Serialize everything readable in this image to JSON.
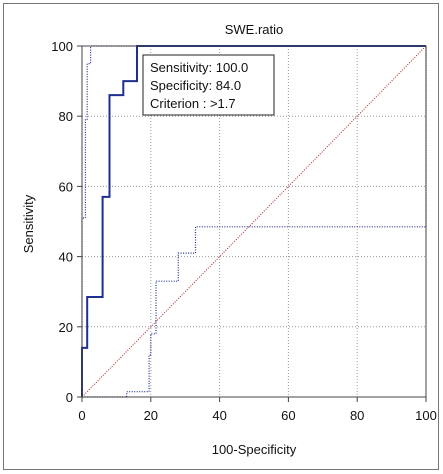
{
  "chart_data": {
    "type": "line",
    "title": "SWE.ratio",
    "xlabel": "100-Specificity",
    "ylabel": "Sensitivity",
    "xlim": [
      0,
      100
    ],
    "ylim": [
      0,
      100
    ],
    "xticks": [
      0,
      20,
      40,
      60,
      80,
      100
    ],
    "yticks": [
      0,
      20,
      40,
      60,
      80,
      100
    ],
    "grid": true,
    "colors": {
      "roc": "#1f2f8f",
      "ci": "#1f2f8f",
      "reference": "#b22222",
      "grid": "#9a9a9a"
    },
    "series": [
      {
        "style": "solid",
        "x": [
          0,
          0,
          1.5,
          1.5,
          6,
          6,
          8,
          8,
          12,
          12,
          16,
          16,
          100
        ],
        "y": [
          0,
          14,
          14,
          28.5,
          28.5,
          57,
          57,
          86,
          86,
          90,
          90,
          100,
          100
        ]
      },
      {
        "style": "dotted",
        "x": [
          0,
          0,
          1,
          1,
          1.5,
          1.5,
          2.5,
          2.5,
          100
        ],
        "y": [
          0,
          51,
          51,
          79,
          79,
          95,
          95,
          100,
          100
        ]
      },
      {
        "style": "dotted",
        "x": [
          0,
          13,
          13,
          19.5,
          19.5,
          20,
          20,
          21.5,
          21.5,
          23,
          23,
          28,
          28,
          33,
          33,
          100,
          100
        ],
        "y": [
          0,
          0,
          1.5,
          1.5,
          12,
          12,
          18,
          18,
          33,
          33,
          33,
          33,
          41,
          41,
          48.5,
          48.5,
          100
        ]
      },
      {
        "style": "reference",
        "x": [
          0,
          100
        ],
        "y": [
          0,
          100
        ]
      }
    ],
    "annotation": {
      "lines": [
        "Sensitivity: 100.0",
        "Specificity: 84.0",
        "Criterion : >1.7"
      ]
    }
  }
}
